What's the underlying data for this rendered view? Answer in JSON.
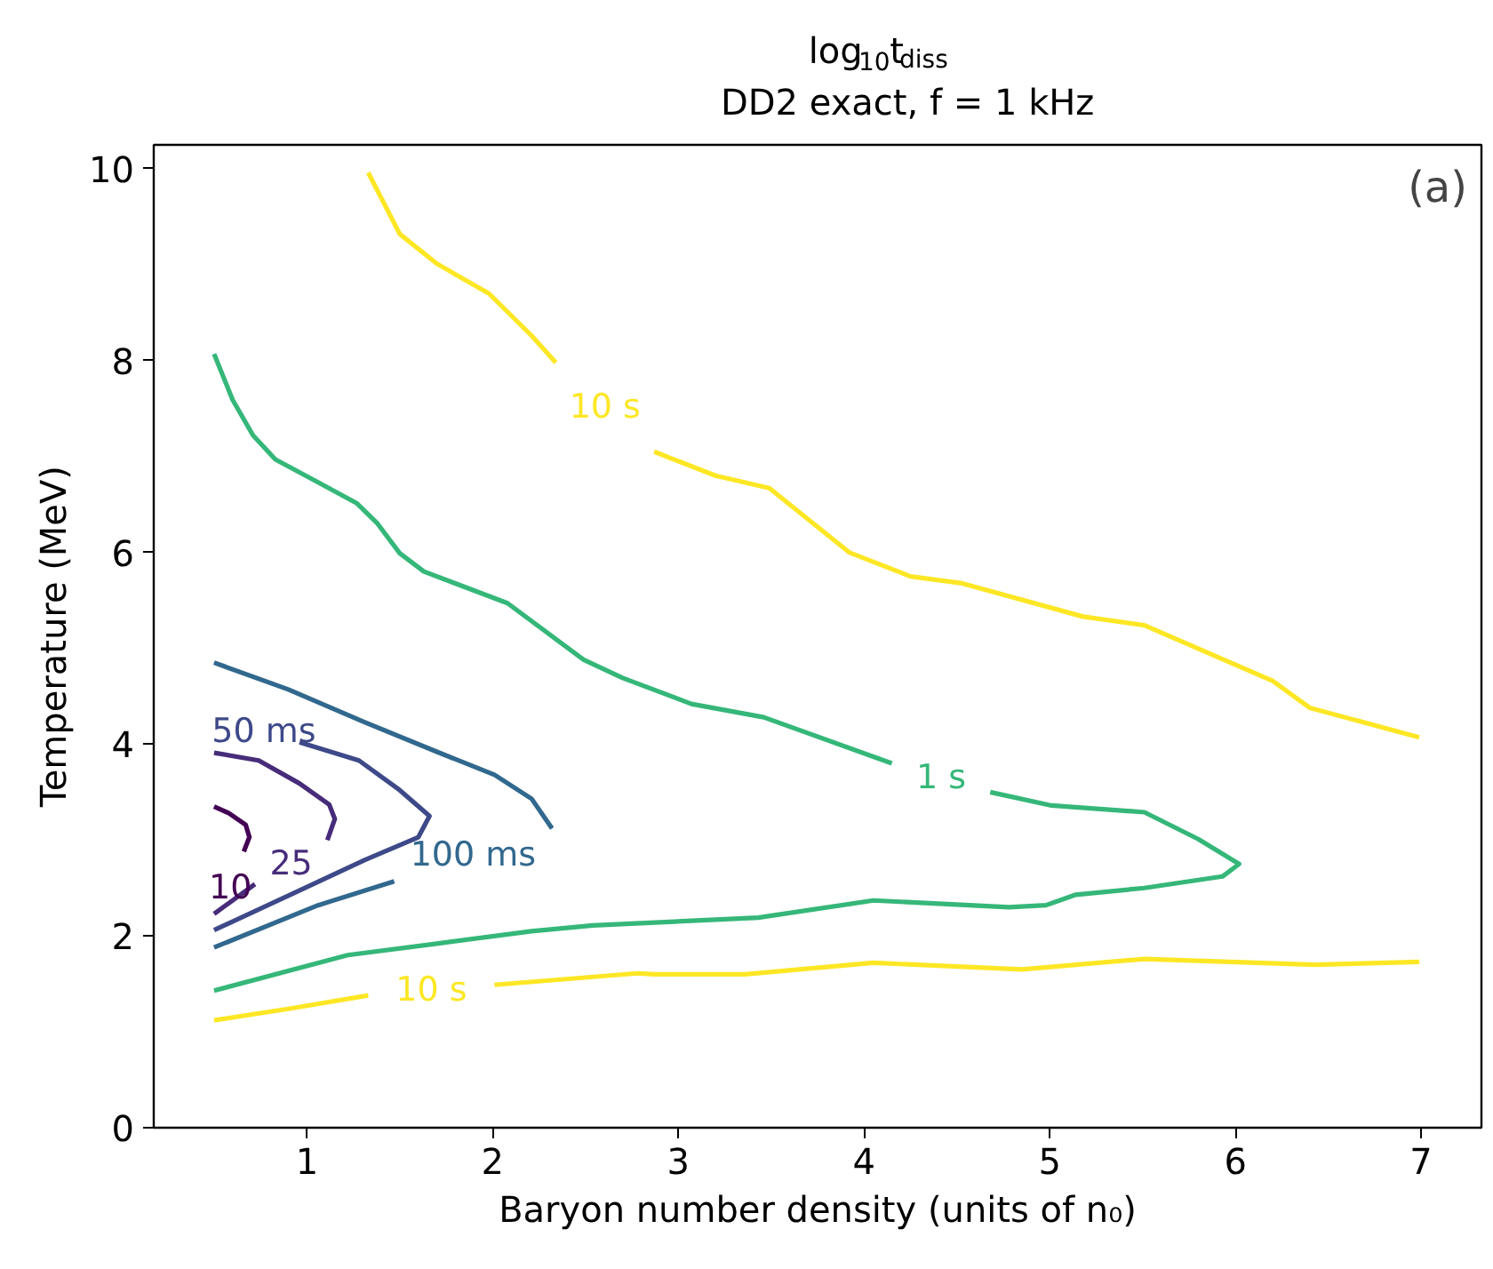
{
  "chart_data": {
    "type": "line",
    "title": "log$_{10}$t$_{diss}$",
    "subtitle": "DD2 exact, f = 1 kHz",
    "xlabel": "Baryon number density (units of n₀)",
    "ylabel": "Temperature (MeV)",
    "xlim": [
      0.175,
      7.325
    ],
    "ylim": [
      0,
      10.25
    ],
    "xticks": [
      1,
      2,
      3,
      4,
      5,
      6,
      7
    ],
    "yticks": [
      0,
      2,
      4,
      6,
      8,
      10
    ],
    "grid": false,
    "legend": false,
    "marker": "none",
    "line_style": "solid",
    "series": [
      {
        "name": "10",
        "color": "#440154",
        "x": [
          0.5,
          0.58,
          0.67,
          0.69,
          0.66,
          null
        ],
        "values": [
          3.35,
          3.28,
          3.16,
          3.03,
          2.88,
          null
        ]
      },
      {
        "name": "25",
        "color": "#472c7a",
        "x": [
          0.5,
          0.74,
          0.96,
          1.12,
          1.15,
          1.11,
          null,
          0.72,
          0.5
        ],
        "values": [
          3.91,
          3.83,
          3.59,
          3.37,
          3.22,
          3.0,
          null,
          2.54,
          2.23
        ]
      },
      {
        "name": "50 ms",
        "color": "#3e4989",
        "x": [
          null,
          0.96,
          1.28,
          1.5,
          1.66,
          1.6,
          1.31,
          0.9,
          0.5
        ],
        "values": [
          null,
          4.02,
          3.83,
          3.52,
          3.25,
          3.03,
          2.79,
          2.42,
          2.06
        ]
      },
      {
        "name": "100 ms",
        "color": "#31688e",
        "x": [
          0.5,
          0.9,
          1.31,
          1.7,
          2.01,
          2.21,
          2.32,
          null,
          1.47,
          1.06,
          0.5
        ],
        "values": [
          4.85,
          4.57,
          4.23,
          3.92,
          3.68,
          3.43,
          3.12,
          null,
          2.57,
          2.32,
          1.88
        ]
      },
      {
        "name": "1 s",
        "color": "#35b779",
        "x": [
          0.5,
          0.6,
          0.71,
          0.83,
          1.06,
          1.27,
          1.38,
          1.5,
          1.63,
          2.08,
          2.49,
          2.7,
          3.07,
          3.46,
          4.15,
          null,
          4.68,
          5.01,
          5.51,
          5.8,
          6.02,
          5.93,
          5.51,
          5.14,
          4.98,
          4.78,
          4.05,
          3.43,
          2.54,
          2.21,
          1.7,
          1.22,
          0.5
        ],
        "values": [
          8.07,
          7.59,
          7.22,
          6.97,
          6.73,
          6.51,
          6.3,
          5.99,
          5.8,
          5.47,
          4.88,
          4.69,
          4.42,
          4.28,
          3.8,
          null,
          3.5,
          3.36,
          3.29,
          3.01,
          2.75,
          2.62,
          2.5,
          2.43,
          2.32,
          2.3,
          2.37,
          2.19,
          2.11,
          2.05,
          1.92,
          1.8,
          1.43
        ]
      },
      {
        "name": "10 s",
        "color": "#fde725",
        "x": [
          1.33,
          1.5,
          1.7,
          1.98,
          2.21,
          2.34,
          null,
          2.87,
          3.2,
          3.49,
          3.92,
          4.25,
          4.52,
          5.18,
          5.51,
          6.2,
          6.4,
          6.99
        ],
        "values": [
          9.96,
          9.32,
          9.01,
          8.7,
          8.26,
          7.98,
          null,
          7.05,
          6.8,
          6.67,
          6.0,
          5.75,
          5.68,
          5.33,
          5.24,
          4.66,
          4.38,
          4.07
        ]
      },
      {
        "name": "10 s",
        "color": "#fde725",
        "x": [
          0.5,
          0.9,
          1.33,
          null,
          2.01,
          2.78,
          2.87,
          3.36,
          4.05,
          4.85,
          5.51,
          6.43,
          6.99
        ],
        "values": [
          1.12,
          1.24,
          1.38,
          null,
          1.49,
          1.61,
          1.6,
          1.6,
          1.72,
          1.65,
          1.76,
          1.7,
          1.73
        ]
      }
    ],
    "annotations": [
      "(a)"
    ]
  }
}
